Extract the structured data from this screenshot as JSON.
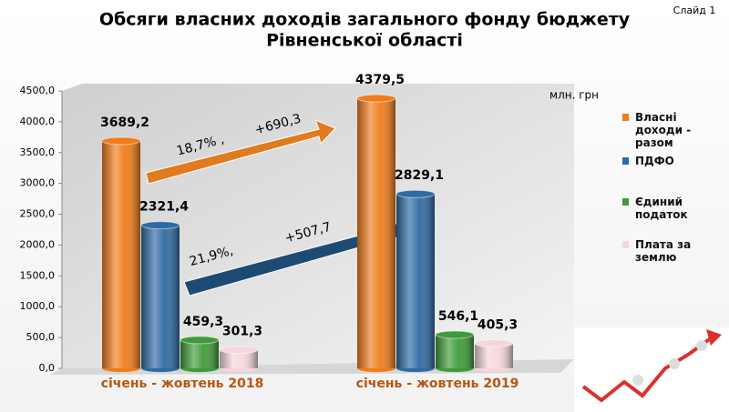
{
  "slide_label": "Слайд 1",
  "chart_data": {
    "type": "bar",
    "title": [
      "Обсяги власних доходів загального фонду бюджету",
      "Рівненської області"
    ],
    "unit": "млн. грн",
    "categories": [
      "січень - жовтень 2018",
      "січень - жовтень 2019"
    ],
    "series": [
      {
        "name": "Власні доходи - разом",
        "color": "#f07c1a",
        "values": [
          3689.2,
          4379.5
        ],
        "value_labels": [
          "3689,2",
          "4379,5"
        ]
      },
      {
        "name": "ПДФО",
        "color": "#2e6aa3",
        "values": [
          2321.4,
          2829.1
        ],
        "value_labels": [
          "2321,4",
          "2829,1"
        ]
      },
      {
        "name": "Єдиний податок",
        "color": "#3f9a3a",
        "values": [
          459.3,
          546.1
        ],
        "value_labels": [
          "459,3",
          "546,1"
        ]
      },
      {
        "name": "Плата за землю",
        "color": "#f6d6dc",
        "values": [
          301.3,
          405.3
        ],
        "value_labels": [
          "301,3",
          "405,3"
        ]
      }
    ],
    "ylim": [
      0,
      4500
    ],
    "yticks": [
      {
        "value": 0,
        "label": "0,0"
      },
      {
        "value": 500,
        "label": "500,0"
      },
      {
        "value": 1000,
        "label": "1000,0"
      },
      {
        "value": 1500,
        "label": "1500,0"
      },
      {
        "value": 2000,
        "label": "2000,0"
      },
      {
        "value": 2500,
        "label": "2500,0"
      },
      {
        "value": 3000,
        "label": "3000,0"
      },
      {
        "value": 3500,
        "label": "3500,0"
      },
      {
        "value": 4000,
        "label": "4000,0"
      },
      {
        "value": 4500,
        "label": "4500,0"
      }
    ],
    "annotations": [
      "18,7% ,",
      "+690,3",
      "21,9%,",
      "+507,7"
    ]
  }
}
